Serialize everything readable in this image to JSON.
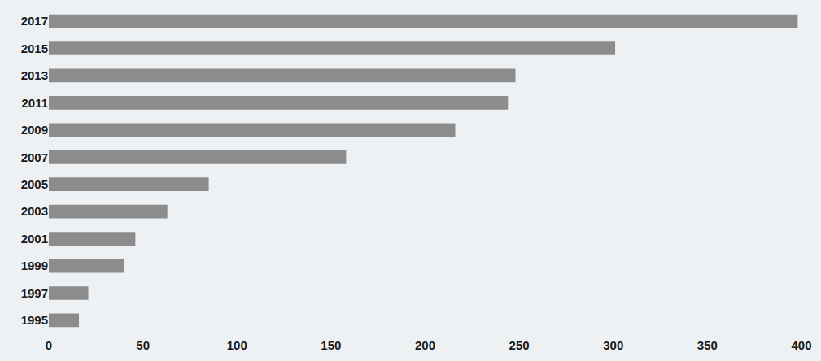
{
  "chart_data": {
    "type": "bar",
    "orientation": "horizontal",
    "categories": [
      "1995",
      "1997",
      "1999",
      "2001",
      "2003",
      "2005",
      "2007",
      "2009",
      "2011",
      "2013",
      "2015",
      "2017"
    ],
    "values": [
      16,
      21,
      40,
      46,
      63,
      85,
      158,
      216,
      244,
      248,
      301,
      398
    ],
    "color": "#8c8c8c",
    "xlim": [
      0,
      400
    ],
    "xticks": [
      0,
      50,
      100,
      150,
      200,
      250,
      300,
      350,
      400
    ],
    "grid": false
  }
}
